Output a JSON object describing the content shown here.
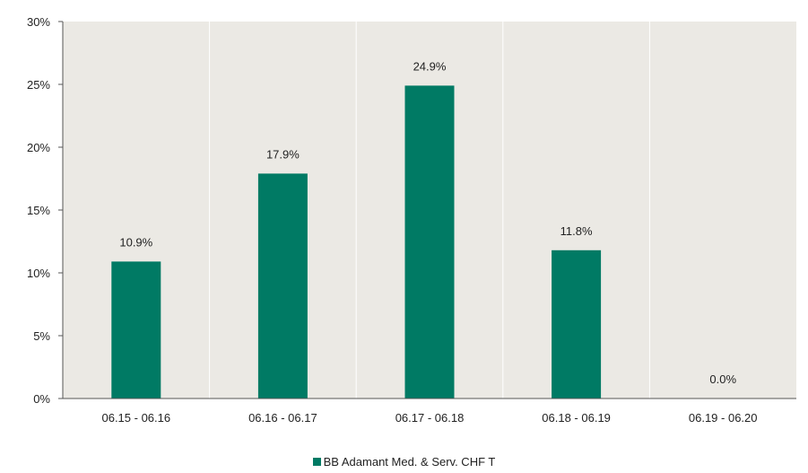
{
  "colors": {
    "bar": "#007a64",
    "plot_background": "#ebe9e4",
    "axis": "#555555",
    "separator": "#ffffff"
  },
  "chart_data": {
    "type": "bar",
    "categories": [
      "06.15 - 06.16",
      "06.16 - 06.17",
      "06.17 - 06.18",
      "06.18 - 06.19",
      "06.19 - 06.20"
    ],
    "series": [
      {
        "name": "BB Adamant Med. & Serv. CHF T",
        "values": [
          10.9,
          17.9,
          24.9,
          11.8,
          0.0
        ]
      }
    ],
    "data_labels": [
      "10.9%",
      "17.9%",
      "24.9%",
      "11.8%",
      "0.0%"
    ],
    "ylim": [
      0,
      30
    ],
    "yticks": [
      0,
      5,
      10,
      15,
      20,
      25,
      30
    ],
    "ytick_labels": [
      "0%",
      "5%",
      "10%",
      "15%",
      "20%",
      "25%",
      "30%"
    ],
    "grid": false,
    "legend_position": "bottom-center"
  }
}
